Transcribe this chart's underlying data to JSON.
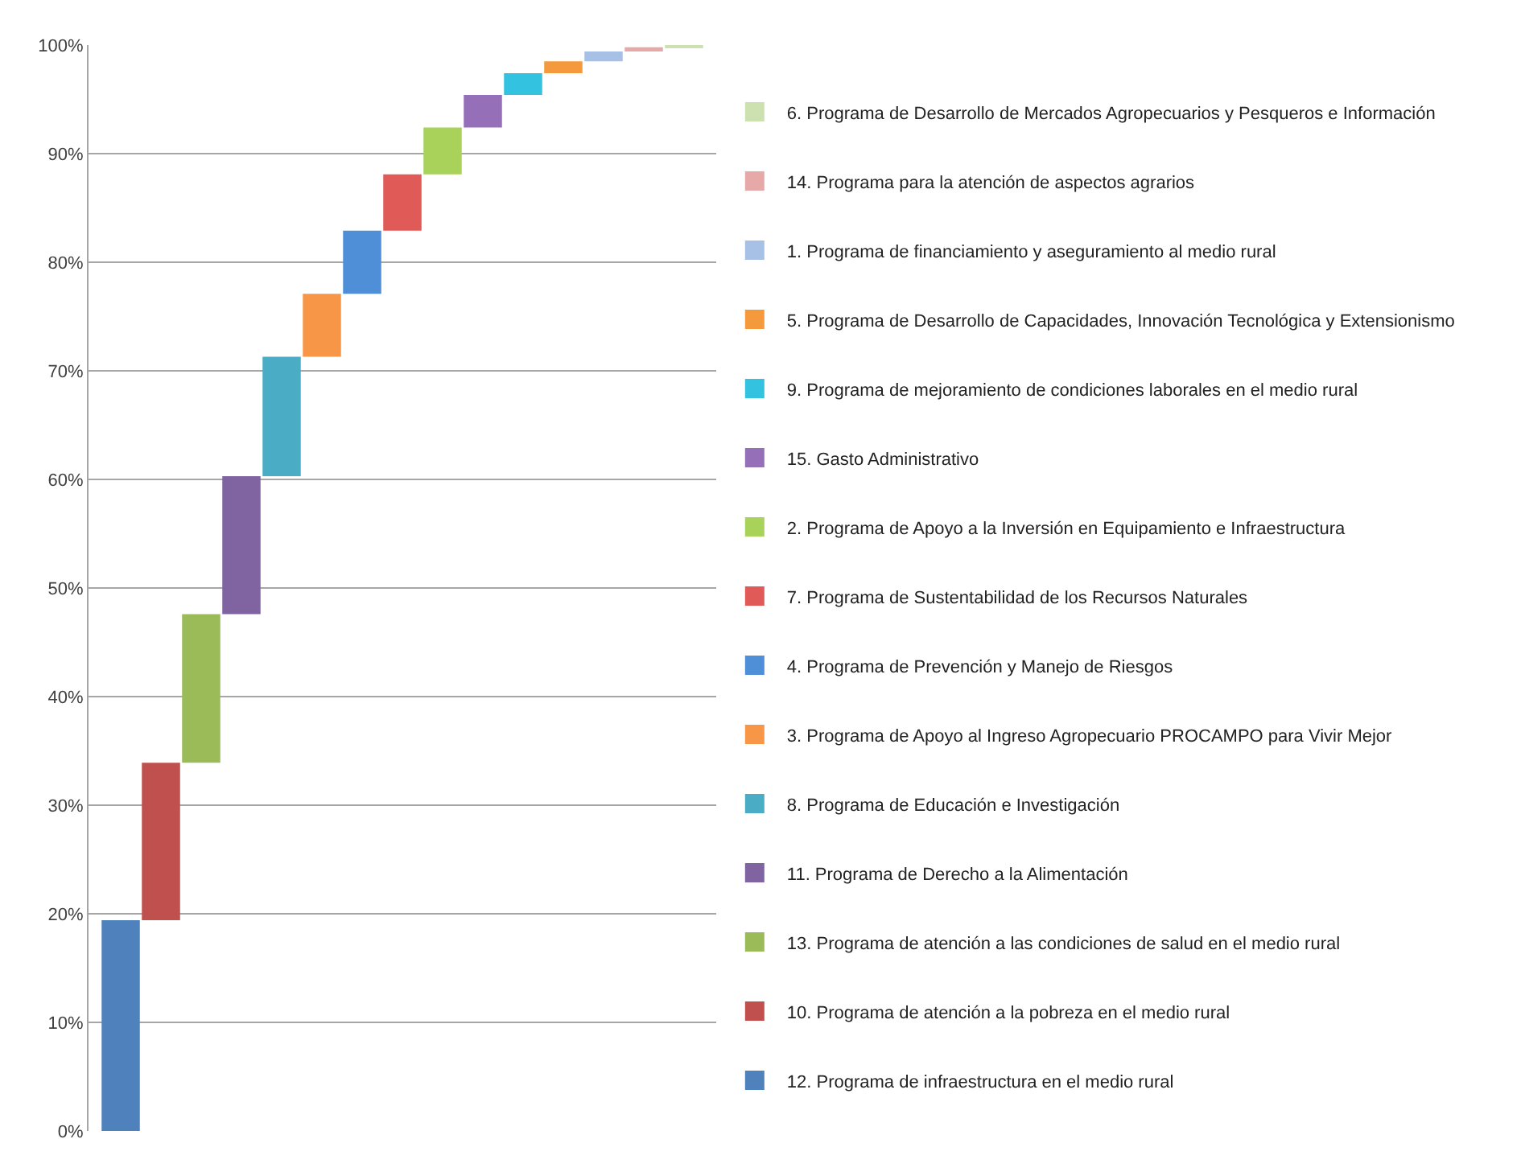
{
  "chart_data": {
    "type": "bar",
    "categories": [
      null,
      null,
      null,
      null,
      null,
      null,
      null,
      null,
      null,
      null,
      null,
      null,
      null,
      null,
      null
    ],
    "series": [
      {
        "name": "12. Programa de infraestructura en el medio rural",
        "color": "#4f81bd",
        "values": [
          19.4,
          null,
          null,
          null,
          null,
          null,
          null,
          null,
          null,
          null,
          null,
          null,
          null,
          null,
          null
        ],
        "base": [
          0,
          null,
          null,
          null,
          null,
          null,
          null,
          null,
          null,
          null,
          null,
          null,
          null,
          null,
          null
        ]
      },
      {
        "name": "10. Programa de atención a la pobreza en el medio rural",
        "color": "#c0504d",
        "values": [
          null,
          14.5,
          null,
          null,
          null,
          null,
          null,
          null,
          null,
          null,
          null,
          null,
          null,
          null,
          null
        ],
        "base": [
          null,
          19.4,
          null,
          null,
          null,
          null,
          null,
          null,
          null,
          null,
          null,
          null,
          null,
          null,
          null
        ]
      },
      {
        "name": "13. Programa de atención a las condiciones de salud en el medio rural",
        "color": "#9bbb59",
        "values": [
          null,
          null,
          13.7,
          null,
          null,
          null,
          null,
          null,
          null,
          null,
          null,
          null,
          null,
          null,
          null
        ],
        "base": [
          null,
          null,
          33.9,
          null,
          null,
          null,
          null,
          null,
          null,
          null,
          null,
          null,
          null,
          null,
          null
        ]
      },
      {
        "name": "11. Programa de Derecho a la Alimentación",
        "color": "#8064a2",
        "values": [
          null,
          null,
          null,
          12.7,
          null,
          null,
          null,
          null,
          null,
          null,
          null,
          null,
          null,
          null,
          null
        ],
        "base": [
          null,
          null,
          null,
          47.6,
          null,
          null,
          null,
          null,
          null,
          null,
          null,
          null,
          null,
          null,
          null
        ]
      },
      {
        "name": "8. Programa de Educación e Investigación",
        "color": "#4bacc6",
        "values": [
          null,
          null,
          null,
          null,
          11.0,
          null,
          null,
          null,
          null,
          null,
          null,
          null,
          null,
          null,
          null
        ],
        "base": [
          null,
          null,
          null,
          null,
          60.3,
          null,
          null,
          null,
          null,
          null,
          null,
          null,
          null,
          null,
          null
        ]
      },
      {
        "name": "3. Programa de Apoyo al Ingreso Agropecuario PROCAMPO para Vivir Mejor",
        "color": "#f79646",
        "values": [
          null,
          null,
          null,
          null,
          null,
          5.8,
          null,
          null,
          null,
          null,
          null,
          null,
          null,
          null,
          null
        ],
        "base": [
          null,
          null,
          null,
          null,
          null,
          71.3,
          null,
          null,
          null,
          null,
          null,
          null,
          null,
          null,
          null
        ]
      },
      {
        "name": "4. Programa de Prevención y Manejo de Riesgos",
        "color": "#4f8fd8",
        "values": [
          null,
          null,
          null,
          null,
          null,
          null,
          5.8,
          null,
          null,
          null,
          null,
          null,
          null,
          null,
          null
        ],
        "base": [
          null,
          null,
          null,
          null,
          null,
          null,
          77.1,
          null,
          null,
          null,
          null,
          null,
          null,
          null,
          null
        ]
      },
      {
        "name": "7. Programa de Sustentabilidad de los Recursos Naturales",
        "color": "#e05a57",
        "values": [
          null,
          null,
          null,
          null,
          null,
          null,
          null,
          5.2,
          null,
          null,
          null,
          null,
          null,
          null,
          null
        ],
        "base": [
          null,
          null,
          null,
          null,
          null,
          null,
          null,
          82.9,
          null,
          null,
          null,
          null,
          null,
          null,
          null
        ]
      },
      {
        "name": "2. Programa de Apoyo a la Inversión en Equipamiento e Infraestructura",
        "color": "#a8d25a",
        "values": [
          null,
          null,
          null,
          null,
          null,
          null,
          null,
          null,
          4.3,
          null,
          null,
          null,
          null,
          null,
          null
        ],
        "base": [
          null,
          null,
          null,
          null,
          null,
          null,
          null,
          null,
          88.1,
          null,
          null,
          null,
          null,
          null,
          null
        ]
      },
      {
        "name": "15. Gasto Administrativo",
        "color": "#9570b8",
        "values": [
          null,
          null,
          null,
          null,
          null,
          null,
          null,
          null,
          null,
          3.0,
          null,
          null,
          null,
          null,
          null
        ],
        "base": [
          null,
          null,
          null,
          null,
          null,
          null,
          null,
          null,
          null,
          92.4,
          null,
          null,
          null,
          null,
          null
        ]
      },
      {
        "name": "9. Programa de mejoramiento de condiciones laborales en el medio rural",
        "color": "#33c3e0",
        "values": [
          null,
          null,
          null,
          null,
          null,
          null,
          null,
          null,
          null,
          null,
          2.0,
          null,
          null,
          null,
          null
        ],
        "base": [
          null,
          null,
          null,
          null,
          null,
          null,
          null,
          null,
          null,
          null,
          95.4,
          null,
          null,
          null,
          null
        ]
      },
      {
        "name": "5. Programa de Desarrollo de Capacidades, Innovación Tecnológica y Extensionismo",
        "color": "#f59a3c",
        "values": [
          null,
          null,
          null,
          null,
          null,
          null,
          null,
          null,
          null,
          null,
          null,
          1.1,
          null,
          null,
          null
        ],
        "base": [
          null,
          null,
          null,
          null,
          null,
          null,
          null,
          null,
          null,
          null,
          null,
          97.4,
          null,
          null,
          null
        ]
      },
      {
        "name": "1. Programa de financiamiento y aseguramiento al medio rural",
        "color": "#a7c0e5",
        "values": [
          null,
          null,
          null,
          null,
          null,
          null,
          null,
          null,
          null,
          null,
          null,
          null,
          0.9,
          null,
          null
        ],
        "base": [
          null,
          null,
          null,
          null,
          null,
          null,
          null,
          null,
          null,
          null,
          null,
          null,
          98.5,
          null,
          null
        ]
      },
      {
        "name": "14. Programa para la atención de aspectos agrarios",
        "color": "#e6a9a8",
        "values": [
          null,
          null,
          null,
          null,
          null,
          null,
          null,
          null,
          null,
          null,
          null,
          null,
          null,
          0.4,
          null
        ],
        "base": [
          null,
          null,
          null,
          null,
          null,
          null,
          null,
          null,
          null,
          null,
          null,
          null,
          null,
          99.4,
          null
        ]
      },
      {
        "name": "6. Programa de Desarrollo de Mercados Agropecuarios y Pesqueros e Información",
        "color": "#cde0b0",
        "values": [
          null,
          null,
          null,
          null,
          null,
          null,
          null,
          null,
          null,
          null,
          null,
          null,
          null,
          null,
          0.2
        ],
        "base": [
          null,
          null,
          null,
          null,
          null,
          null,
          null,
          null,
          null,
          null,
          null,
          null,
          null,
          null,
          99.8
        ]
      }
    ],
    "ylim": [
      0,
      100
    ],
    "yticks": [
      {
        "value": 0,
        "label": "0%"
      },
      {
        "value": 10,
        "label": "10%"
      },
      {
        "value": 20,
        "label": "20%"
      },
      {
        "value": 30,
        "label": "30%"
      },
      {
        "value": 40,
        "label": "40%"
      },
      {
        "value": 50,
        "label": "50%"
      },
      {
        "value": 60,
        "label": "60%"
      },
      {
        "value": 70,
        "label": "70%"
      },
      {
        "value": 80,
        "label": "80%"
      },
      {
        "value": 90,
        "label": "90%"
      },
      {
        "value": 100,
        "label": "100%"
      }
    ],
    "grid": "y",
    "legend": "right"
  }
}
